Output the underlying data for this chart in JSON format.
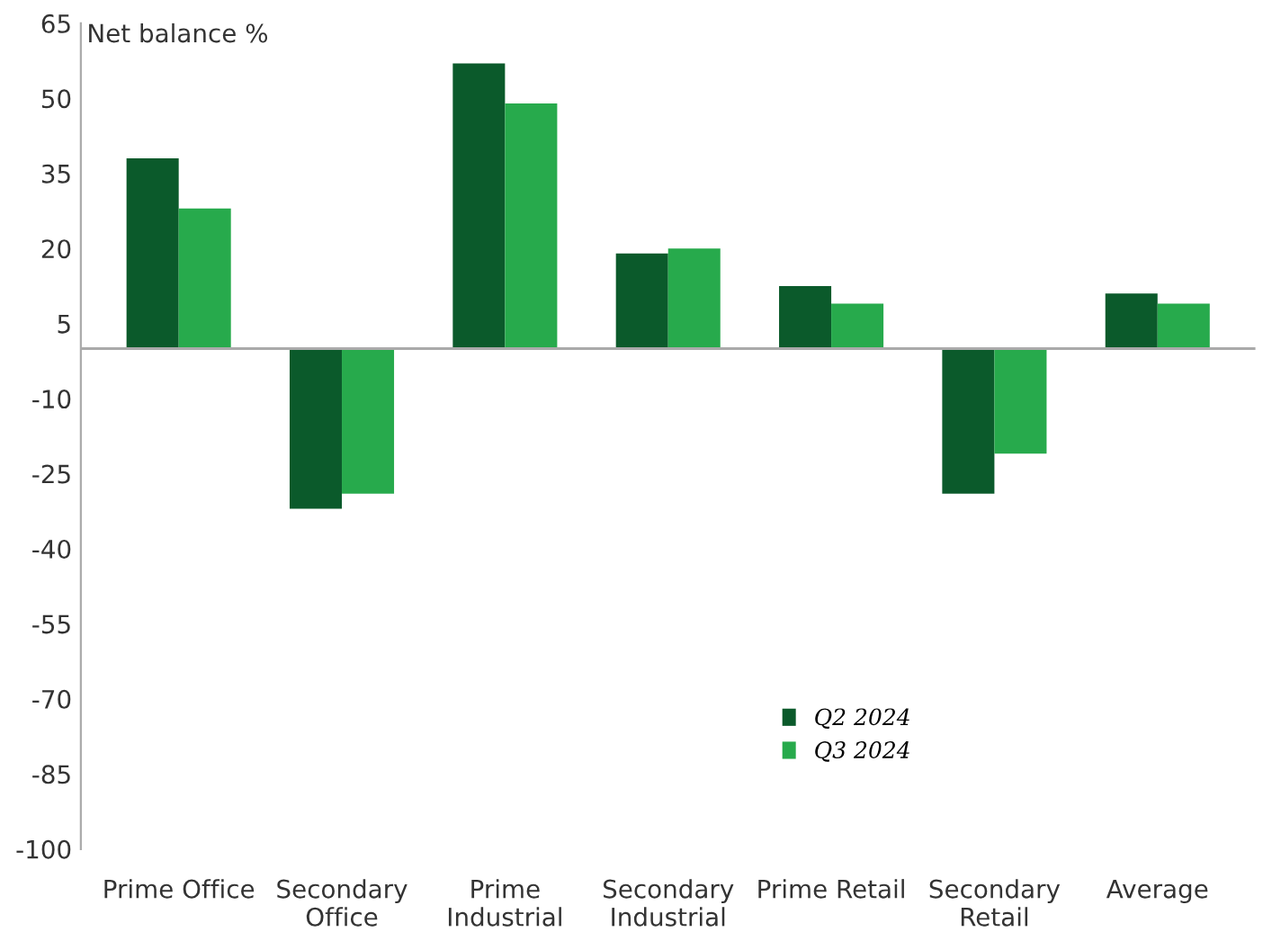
{
  "chart_data": {
    "type": "bar",
    "ylabel": "Net balance %",
    "categories": [
      "Prime Office",
      "Secondary\nOffice",
      "Prime\nIndustrial",
      "Secondary\nIndustrial",
      "Prime Retail",
      "Secondary\nRetail",
      "Average"
    ],
    "series": [
      {
        "name": "Q2 2024",
        "color": "#0b5a2b",
        "values": [
          38,
          -32,
          57,
          19,
          12.5,
          -29,
          11
        ]
      },
      {
        "name": "Q3 2024",
        "color": "#27aa4c",
        "values": [
          28,
          -29,
          49,
          20,
          9,
          -21,
          9
        ]
      }
    ],
    "ylim": [
      -100,
      65
    ],
    "yticks": [
      65,
      50,
      35,
      20,
      5,
      -10,
      -25,
      -40,
      -55,
      -70,
      -85,
      -100
    ],
    "grid": false,
    "legend": "bottom right"
  }
}
